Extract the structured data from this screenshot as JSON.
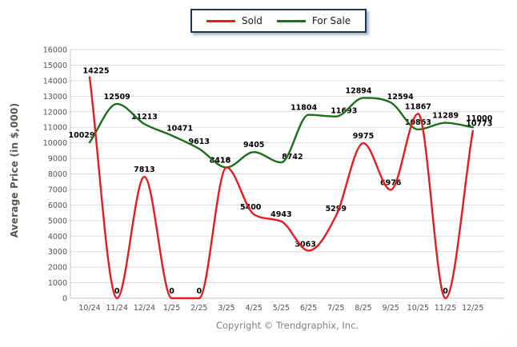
{
  "page": {
    "copyright": "Copyright © Trendgraphix, Inc."
  },
  "chart_data": {
    "type": "line",
    "title": "",
    "xlabel": "",
    "ylabel": "Average Price (in $,000)",
    "ylim": [
      0,
      16000
    ],
    "ytick_step": 1000,
    "grid": true,
    "legend_position": "top-center",
    "categories": [
      "10/24",
      "11/24",
      "12/24",
      "1/25",
      "2/25",
      "3/25",
      "4/25",
      "5/25",
      "6/25",
      "7/25",
      "8/25",
      "9/25",
      "10/25",
      "11/25",
      "12/25"
    ],
    "series": [
      {
        "name": "For Sale",
        "color": "#1c6e1c",
        "values": [
          10029,
          12509,
          11213,
          10471,
          9613,
          8418,
          9405,
          8742,
          11804,
          11693,
          12894,
          12594,
          10863,
          11289,
          11000
        ],
        "label_offsets": {
          "0": [
            -10,
            -4
          ],
          "3": [
            10,
            -4
          ],
          "5": [
            -8,
            -4
          ],
          "7": [
            14,
            -2
          ],
          "8": [
            -6,
            -4
          ],
          "9": [
            10,
            -2
          ],
          "10": [
            -6,
            -4
          ],
          "11": [
            12,
            -2
          ],
          "14": [
            8,
            -6
          ]
        }
      },
      {
        "name": "Sold",
        "color": "#e11d23",
        "values": [
          14225,
          0,
          7813,
          0,
          0,
          8416,
          5400,
          4943,
          3063,
          5299,
          9975,
          6976,
          11867,
          0,
          10773
        ],
        "label_offsets": {
          "0": [
            8,
            -3
          ],
          "5": [
            -8,
            -4
          ],
          "6": [
            -4,
            -4
          ],
          "8": [
            -4,
            -3
          ],
          "14": [
            8,
            -4
          ]
        }
      }
    ]
  },
  "style": {
    "label_color": "#000000",
    "tick_color": "#55514b",
    "grid_color": "#dddddd",
    "axis_color": "#c6c6c6"
  }
}
